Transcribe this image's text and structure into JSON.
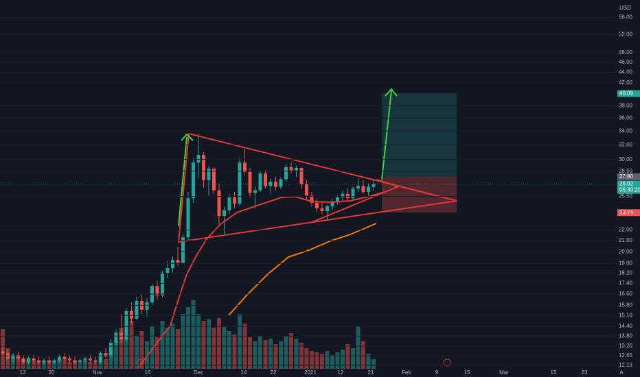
{
  "chart_data": {
    "type": "candlestick",
    "currency": "USD",
    "log_scale": true,
    "ylim": [
      11.95,
      60.5
    ],
    "yticks": [
      {
        "value": 56,
        "label": "56.00"
      },
      {
        "value": 52,
        "label": "52.00"
      },
      {
        "value": 48,
        "label": "48.00"
      },
      {
        "value": 46,
        "label": "46.00"
      },
      {
        "value": 44,
        "label": "44.00"
      },
      {
        "value": 42,
        "label": "42.00"
      },
      {
        "value": 38,
        "label": "38.00"
      },
      {
        "value": 36,
        "label": "36.00"
      },
      {
        "value": 34,
        "label": "34.00"
      },
      {
        "value": 32,
        "label": "32.00"
      },
      {
        "value": 30,
        "label": "30.00"
      },
      {
        "value": 28.5,
        "label": "28.50"
      },
      {
        "value": 25.5,
        "label": "25.50"
      },
      {
        "value": 22,
        "label": "22.00"
      },
      {
        "value": 21,
        "label": "21.00"
      },
      {
        "value": 20,
        "label": "20.00"
      },
      {
        "value": 19,
        "label": "19.00"
      },
      {
        "value": 18.2,
        "label": "18.20"
      },
      {
        "value": 17.4,
        "label": "17.40"
      },
      {
        "value": 16.6,
        "label": "16.60"
      },
      {
        "value": 15.8,
        "label": "15.80"
      },
      {
        "value": 15.1,
        "label": "15.10"
      },
      {
        "value": 14.4,
        "label": "14.40"
      },
      {
        "value": 13.8,
        "label": "13.80"
      },
      {
        "value": 13.2,
        "label": "13.20"
      },
      {
        "value": 12.65,
        "label": "12.65"
      },
      {
        "value": 12.13,
        "label": "12.13"
      }
    ],
    "x_labels": [
      "12",
      "20",
      "Nov",
      "16",
      "Dec",
      "14",
      "22",
      "2021",
      "12",
      "21",
      "Feb",
      "9",
      "15",
      "Mar",
      "15",
      "23",
      "A"
    ],
    "price_tags": [
      {
        "value": 40.09,
        "color": "#26a69a"
      },
      {
        "value": 27.8,
        "label": "27.80",
        "color": "#5d606b"
      },
      {
        "value": 26.92,
        "color": "#26a69a",
        "countdown": "05:30:20"
      },
      {
        "value": 23.74,
        "color": "#ef5350"
      }
    ],
    "up_color": "#26a69a",
    "down_color": "#ef5350",
    "candles": [
      [
        12.9,
        13.3,
        12.6,
        12.8
      ],
      [
        12.8,
        13.0,
        12.4,
        12.5
      ],
      [
        12.5,
        12.8,
        12.3,
        12.7
      ],
      [
        12.7,
        12.9,
        12.4,
        12.5
      ],
      [
        12.5,
        12.7,
        12.2,
        12.3
      ],
      [
        12.3,
        12.6,
        12.2,
        12.5
      ],
      [
        12.5,
        12.7,
        12.3,
        12.4
      ],
      [
        12.4,
        12.6,
        12.2,
        12.3
      ],
      [
        12.3,
        12.5,
        12.1,
        12.4
      ],
      [
        12.4,
        12.6,
        12.2,
        12.3
      ],
      [
        12.3,
        12.5,
        12.2,
        12.4
      ],
      [
        12.4,
        12.7,
        12.3,
        12.6
      ],
      [
        12.6,
        12.8,
        12.4,
        12.5
      ],
      [
        12.5,
        12.7,
        12.3,
        12.4
      ],
      [
        12.4,
        12.6,
        12.2,
        12.3
      ],
      [
        12.3,
        12.5,
        12.2,
        12.4
      ],
      [
        12.4,
        12.6,
        12.3,
        12.5
      ],
      [
        12.5,
        12.7,
        12.3,
        12.4
      ],
      [
        12.4,
        12.6,
        12.2,
        12.3
      ],
      [
        12.3,
        12.9,
        12.2,
        12.8
      ],
      [
        12.8,
        13.1,
        12.5,
        12.6
      ],
      [
        12.6,
        13.6,
        12.5,
        13.4
      ],
      [
        13.4,
        14.2,
        13.2,
        14.0
      ],
      [
        14.0,
        15.2,
        13.4,
        13.6
      ],
      [
        13.6,
        15.6,
        13.5,
        15.4
      ],
      [
        15.4,
        16.0,
        14.6,
        14.9
      ],
      [
        14.9,
        16.4,
        14.8,
        16.1
      ],
      [
        16.1,
        16.6,
        15.2,
        15.5
      ],
      [
        15.5,
        16.3,
        15.0,
        16.0
      ],
      [
        16.0,
        17.4,
        15.8,
        17.2
      ],
      [
        17.2,
        17.6,
        16.2,
        16.5
      ],
      [
        16.5,
        18.4,
        16.4,
        18.2
      ],
      [
        18.2,
        19.2,
        17.8,
        18.6
      ],
      [
        18.6,
        19.6,
        18.2,
        19.3
      ],
      [
        19.3,
        20.4,
        18.8,
        19.0
      ],
      [
        19.0,
        21.6,
        18.9,
        21.3
      ],
      [
        21.3,
        26.0,
        21.0,
        25.3
      ],
      [
        25.3,
        30.2,
        24.8,
        29.6
      ],
      [
        29.6,
        33.6,
        27.6,
        30.6
      ],
      [
        30.6,
        31.0,
        26.5,
        27.4
      ],
      [
        27.4,
        29.2,
        25.6,
        28.8
      ],
      [
        28.8,
        29.0,
        25.8,
        26.2
      ],
      [
        26.2,
        27.0,
        22.6,
        23.4
      ],
      [
        23.4,
        24.4,
        21.6,
        24.0
      ],
      [
        24.0,
        25.8,
        23.6,
        25.4
      ],
      [
        25.4,
        26.0,
        24.2,
        24.7
      ],
      [
        24.7,
        30.2,
        24.5,
        29.6
      ],
      [
        29.6,
        31.4,
        28.0,
        28.4
      ],
      [
        28.4,
        28.9,
        25.4,
        25.9
      ],
      [
        25.9,
        26.6,
        24.2,
        26.2
      ],
      [
        26.2,
        28.6,
        26.0,
        28.2
      ],
      [
        28.2,
        28.6,
        26.4,
        26.7
      ],
      [
        26.7,
        27.6,
        25.8,
        27.2
      ],
      [
        27.2,
        27.8,
        26.2,
        26.6
      ],
      [
        26.6,
        27.8,
        26.3,
        27.5
      ],
      [
        27.5,
        29.4,
        27.2,
        29.0
      ],
      [
        29.0,
        29.6,
        28.2,
        28.6
      ],
      [
        28.6,
        29.2,
        27.8,
        28.9
      ],
      [
        28.9,
        29.0,
        26.4,
        26.9
      ],
      [
        26.9,
        27.4,
        25.2,
        25.6
      ],
      [
        25.6,
        26.0,
        24.4,
        24.8
      ],
      [
        24.8,
        25.2,
        23.8,
        24.2
      ],
      [
        24.2,
        25.0,
        23.6,
        23.9
      ],
      [
        23.9,
        24.6,
        23.0,
        24.4
      ],
      [
        24.4,
        25.2,
        24.0,
        24.9
      ],
      [
        24.9,
        25.6,
        24.6,
        25.4
      ],
      [
        25.4,
        26.2,
        25.0,
        25.8
      ],
      [
        25.8,
        26.4,
        25.1,
        25.3
      ],
      [
        25.3,
        26.6,
        25.2,
        26.4
      ],
      [
        26.4,
        27.6,
        26.0,
        26.7
      ],
      [
        26.7,
        27.4,
        25.8,
        26.0
      ],
      [
        26.0,
        27.0,
        25.6,
        26.6
      ],
      [
        26.6,
        27.4,
        26.1,
        26.92
      ]
    ],
    "volumes": [
      58,
      30,
      20,
      18,
      14,
      16,
      12,
      12,
      10,
      12,
      10,
      14,
      16,
      10,
      12,
      8,
      12,
      10,
      8,
      22,
      14,
      30,
      40,
      60,
      50,
      70,
      48,
      55,
      40,
      62,
      46,
      70,
      60,
      66,
      58,
      80,
      90,
      100,
      80,
      70,
      72,
      60,
      74,
      62,
      55,
      50,
      80,
      66,
      46,
      40,
      48,
      42,
      44,
      36,
      40,
      48,
      52,
      44,
      38,
      30,
      26,
      24,
      22,
      26,
      20,
      24,
      28,
      36,
      30,
      62,
      40,
      22,
      14
    ]
  }
}
